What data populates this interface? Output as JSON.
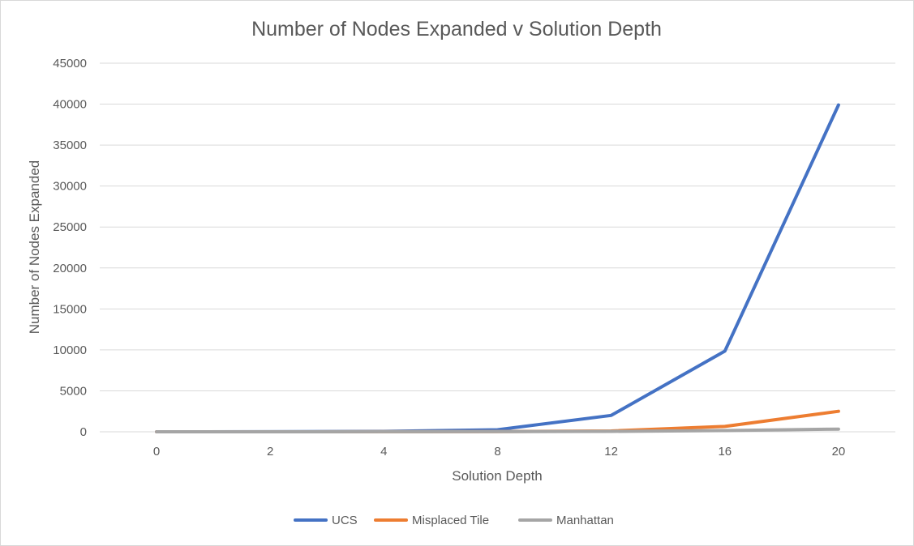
{
  "chart_data": {
    "type": "line",
    "title": "Number of Nodes Expanded v Solution Depth",
    "xlabel": "Solution Depth",
    "ylabel": "Number of Nodes Expanded",
    "categories": [
      "0",
      "2",
      "4",
      "8",
      "12",
      "16",
      "20"
    ],
    "ylim": [
      0,
      45000
    ],
    "yticks": [
      0,
      5000,
      10000,
      15000,
      20000,
      25000,
      30000,
      35000,
      40000,
      45000
    ],
    "grid": true,
    "legend_position": "bottom",
    "series": [
      {
        "name": "UCS",
        "color": "#4472c4",
        "values": [
          0,
          5,
          50,
          250,
          2000,
          9850,
          39900
        ]
      },
      {
        "name": "Misplaced Tile",
        "color": "#ed7d31",
        "values": [
          0,
          2,
          5,
          20,
          100,
          650,
          2500
        ]
      },
      {
        "name": "Manhattan",
        "color": "#a5a5a5",
        "values": [
          0,
          2,
          5,
          15,
          50,
          150,
          330
        ]
      }
    ]
  }
}
